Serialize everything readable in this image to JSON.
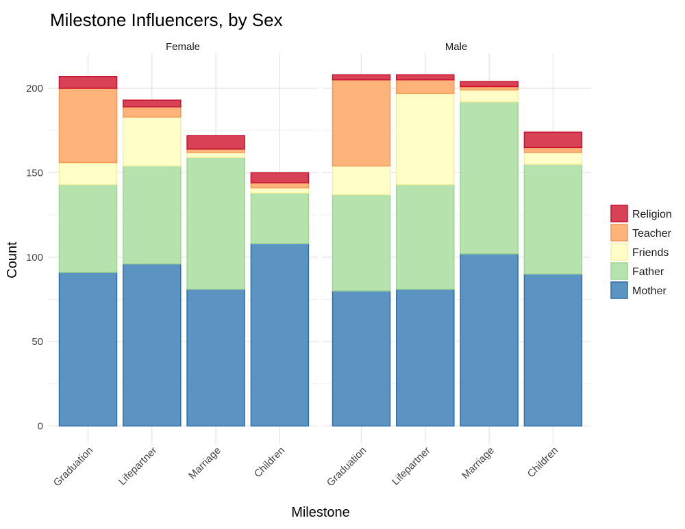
{
  "chart_data": {
    "type": "bar",
    "stacked": true,
    "title": "Milestone Influencers, by Sex",
    "xlabel": "Milestone",
    "ylabel": "Count",
    "ylim": [
      0,
      220
    ],
    "yticks": [
      0,
      50,
      100,
      150,
      200
    ],
    "grid": true,
    "legend_position": "right",
    "categories": [
      "Graduation",
      "Lifepartner",
      "Marriage",
      "Children"
    ],
    "stack_order": [
      "Mother",
      "Father",
      "Friends",
      "Teacher",
      "Religion"
    ],
    "legend_order": [
      "Religion",
      "Teacher",
      "Friends",
      "Father",
      "Mother"
    ],
    "colors": {
      "Mother": {
        "fill": "#5B93C3",
        "stroke": "#2E6FAA"
      },
      "Father": {
        "fill": "#B6E2AD",
        "stroke": "#9FD492"
      },
      "Friends": {
        "fill": "#FFFEC9",
        "stroke": "#F5F0A0"
      },
      "Teacher": {
        "fill": "#FDB37A",
        "stroke": "#F29A55"
      },
      "Religion": {
        "fill": "#D74256",
        "stroke": "#C8102E"
      }
    },
    "panels": [
      {
        "name": "Female",
        "series": [
          {
            "name": "Mother",
            "values": [
              91,
              96,
              81,
              108
            ]
          },
          {
            "name": "Father",
            "values": [
              52,
              58,
              78,
              30
            ]
          },
          {
            "name": "Friends",
            "values": [
              13,
              29,
              3,
              3
            ]
          },
          {
            "name": "Teacher",
            "values": [
              44,
              6,
              2,
              3
            ]
          },
          {
            "name": "Religion",
            "values": [
              7,
              4,
              8,
              6
            ]
          }
        ]
      },
      {
        "name": "Male",
        "series": [
          {
            "name": "Mother",
            "values": [
              80,
              81,
              102,
              90
            ]
          },
          {
            "name": "Father",
            "values": [
              57,
              62,
              90,
              65
            ]
          },
          {
            "name": "Friends",
            "values": [
              17,
              54,
              7,
              7
            ]
          },
          {
            "name": "Teacher",
            "values": [
              51,
              8,
              2,
              3
            ]
          },
          {
            "name": "Religion",
            "values": [
              3,
              3,
              3,
              9
            ]
          }
        ]
      }
    ]
  }
}
